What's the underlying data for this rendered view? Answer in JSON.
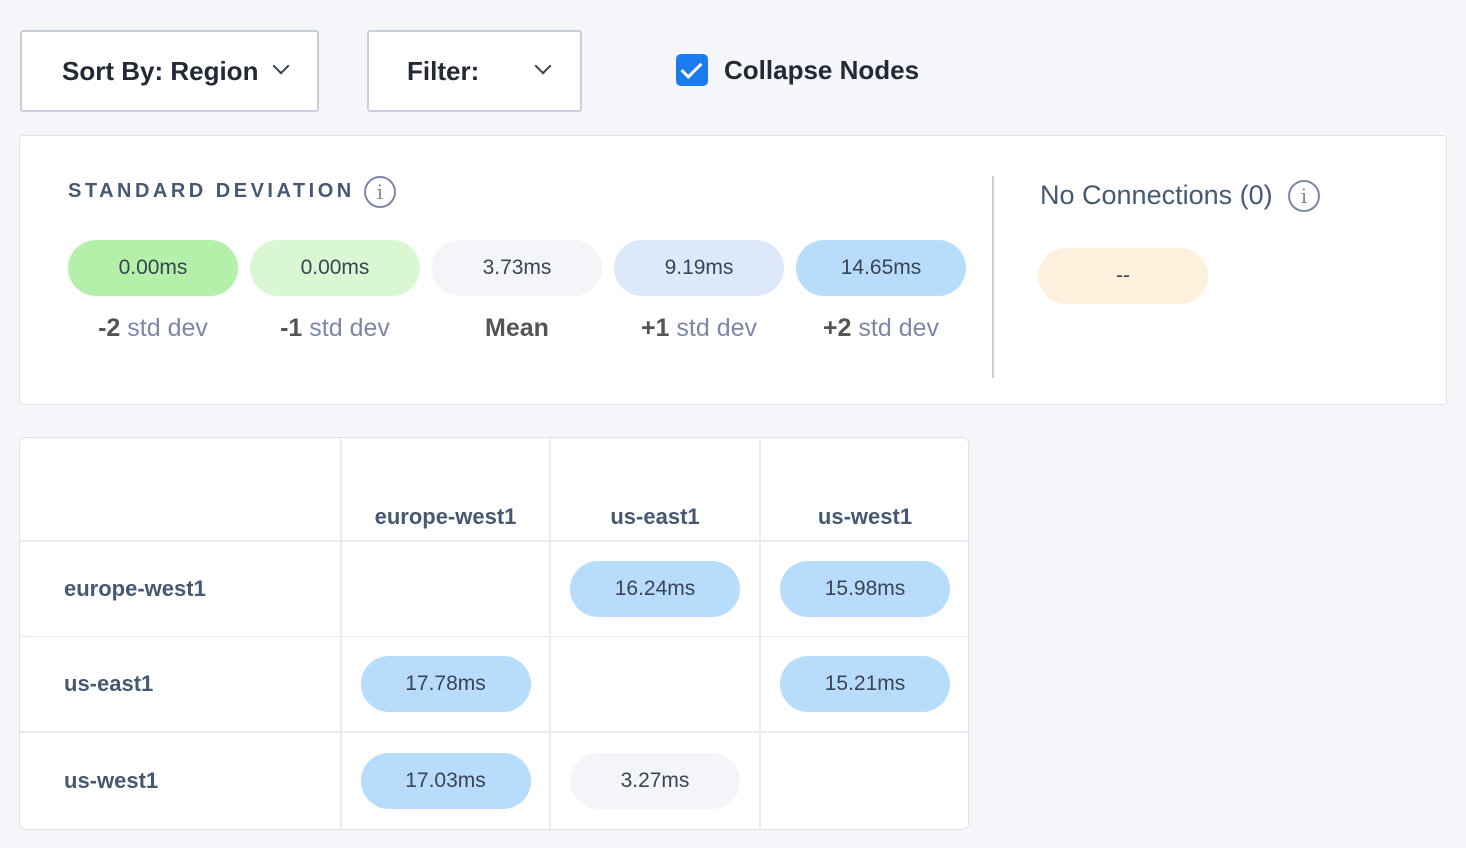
{
  "toolbar": {
    "sort_label": "Sort By: Region",
    "filter_label": "Filter:",
    "collapse_label": "Collapse Nodes",
    "collapse_checked": true
  },
  "legend": {
    "title": "STANDARD DEVIATION",
    "items": [
      {
        "value": "0.00ms",
        "prefix": "-2",
        "suffix": "std dev",
        "color": "#b4f0a9"
      },
      {
        "value": "0.00ms",
        "prefix": "-1",
        "suffix": "std dev",
        "color": "#d9f7d2"
      },
      {
        "value": "3.73ms",
        "prefix": "Mean",
        "suffix": "",
        "color": "#f3f5f9"
      },
      {
        "value": "9.19ms",
        "prefix": "+1",
        "suffix": "std dev",
        "color": "#dde9f8"
      },
      {
        "value": "14.65ms",
        "prefix": "+2",
        "suffix": "std dev",
        "color": "#b8dcfc"
      }
    ]
  },
  "no_connections": {
    "label": "No Connections (0)",
    "value": "--",
    "color": "#fdf0dc"
  },
  "matrix": {
    "columns": [
      "europe-west1",
      "us-east1",
      "us-west1"
    ],
    "rows": [
      {
        "label": "europe-west1",
        "cells": [
          "",
          "16.24ms",
          "15.98ms"
        ]
      },
      {
        "label": "us-east1",
        "cells": [
          "17.78ms",
          "",
          "15.21ms"
        ]
      },
      {
        "label": "us-west1",
        "cells": [
          "17.03ms",
          "3.27ms",
          ""
        ]
      }
    ]
  },
  "colors": {
    "high": "#b8dcfc",
    "mean": "#f3f5f9",
    "accent": "#1a7cf0"
  }
}
